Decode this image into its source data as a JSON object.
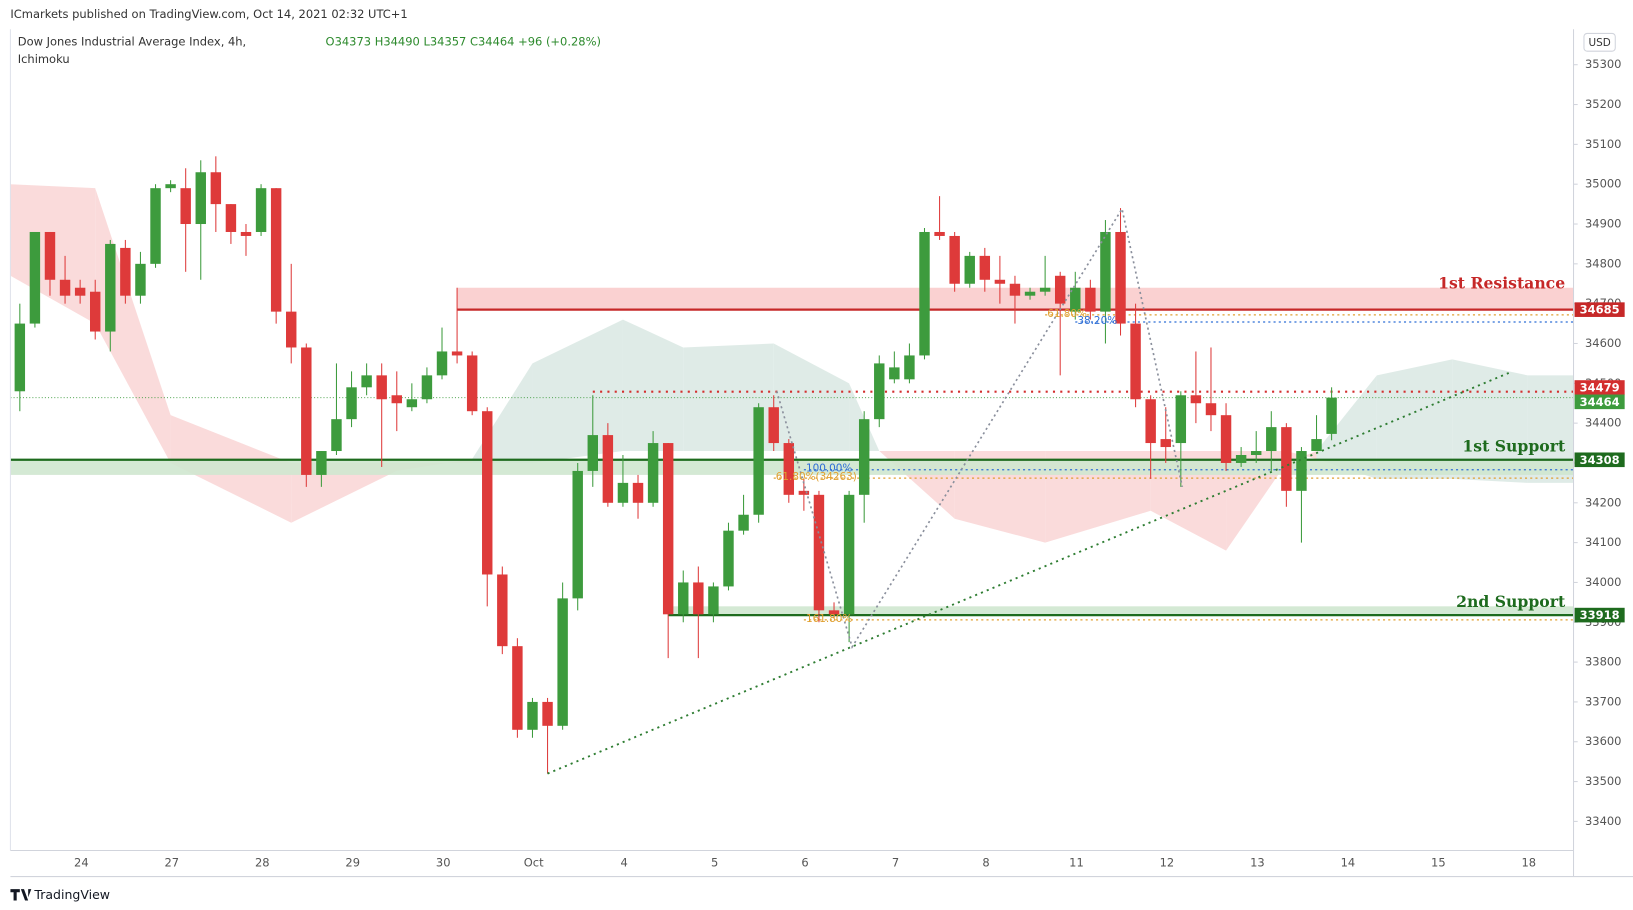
{
  "chart_data": {
    "type": "candlestick",
    "publisher": "ICmarkets published on TradingView.com, Oct 14, 2021 02:32 UTC+1",
    "symbol": "Dow Jones Industrial Average Index, 4h,",
    "indicator": "Ichimoku",
    "ohlc_text": "O34373 H34490 L34357 C34464 +96 (+0.28%)",
    "currency": "USD",
    "brand": "TradingView",
    "day_labels": [
      "24",
      "27",
      "28",
      "29",
      "30",
      "Oct",
      "4",
      "5",
      "6",
      "7",
      "8",
      "11",
      "12",
      "13",
      "14",
      "15",
      "18"
    ],
    "ylim": [
      33327,
      35389
    ],
    "yticks": [
      33400,
      33500,
      33600,
      33700,
      33800,
      33900,
      34000,
      34100,
      34200,
      34300,
      34400,
      34500,
      34600,
      34700,
      34800,
      34900,
      35000,
      35100,
      35200,
      35300
    ],
    "grid": false,
    "up_color": "#3d9b3d",
    "down_color": "#de3a3a",
    "open": [
      34480,
      34650,
      34880,
      34760,
      34740,
      34730,
      34630,
      34840,
      34720,
      34800,
      34990,
      34990,
      34900,
      35030,
      34950,
      34880,
      34880,
      34990,
      34680,
      34590,
      34270,
      34330,
      34410,
      34490,
      34520,
      34470,
      34440,
      34460,
      34520,
      34580,
      34570,
      34430,
      34020,
      33840,
      33630,
      33700,
      33640,
      33960,
      34280,
      34370,
      34200,
      34250,
      34200,
      34350,
      33920,
      34000,
      33920,
      33990,
      34130,
      34170,
      34440,
      34350,
      34230,
      34220,
      33930,
      33920,
      34220,
      34410,
      34510,
      34510,
      34570,
      34880,
      34870,
      34750,
      34820,
      34760,
      34750,
      34720,
      34730,
      34770,
      34680,
      34740,
      34680,
      34880,
      34650,
      34460,
      34360,
      34350,
      34470,
      34450,
      34420,
      34300,
      34320,
      34330,
      34390,
      34230,
      34330,
      34373
    ],
    "high": [
      34700,
      34880,
      34880,
      34820,
      34760,
      34760,
      34860,
      34860,
      34830,
      35000,
      35010,
      35040,
      35060,
      35070,
      34950,
      34900,
      35000,
      34990,
      34800,
      34600,
      34330,
      34550,
      34530,
      34550,
      34550,
      34530,
      34500,
      34540,
      34640,
      34740,
      34580,
      34440,
      34040,
      33860,
      33710,
      33710,
      34000,
      34300,
      34470,
      34400,
      34320,
      34270,
      34380,
      34350,
      34030,
      34040,
      34000,
      34150,
      34220,
      34450,
      34470,
      34360,
      34260,
      34230,
      33950,
      34230,
      34430,
      34570,
      34580,
      34600,
      34890,
      34970,
      34880,
      34830,
      34840,
      34820,
      34770,
      34740,
      34820,
      34780,
      34780,
      34760,
      34910,
      34940,
      34700,
      34470,
      34440,
      34480,
      34580,
      34590,
      34450,
      34340,
      34380,
      34430,
      34400,
      34340,
      34420,
      34490
    ],
    "low": [
      34430,
      34640,
      34720,
      34700,
      34700,
      34610,
      34580,
      34700,
      34700,
      34790,
      34980,
      34780,
      34760,
      34880,
      34850,
      34820,
      34870,
      34650,
      34550,
      34240,
      34240,
      34320,
      34390,
      34470,
      34290,
      34380,
      34430,
      34450,
      34510,
      34550,
      34420,
      33940,
      33820,
      33610,
      33610,
      33520,
      33630,
      33930,
      34240,
      34190,
      34190,
      34160,
      34190,
      33810,
      33900,
      33810,
      33900,
      33980,
      34120,
      34150,
      34330,
      34200,
      34180,
      33900,
      33910,
      33850,
      34150,
      34390,
      34500,
      34500,
      34560,
      34860,
      34730,
      34740,
      34730,
      34700,
      34650,
      34710,
      34720,
      34520,
      34660,
      34660,
      34600,
      34620,
      34440,
      34260,
      34300,
      34240,
      34400,
      34380,
      34280,
      34290,
      34300,
      34280,
      34190,
      34100,
      34330,
      34357
    ],
    "close": [
      34650,
      34880,
      34760,
      34720,
      34720,
      34630,
      34850,
      34720,
      34800,
      34990,
      35000,
      34900,
      35030,
      34950,
      34880,
      34870,
      34990,
      34680,
      34590,
      34270,
      34330,
      34410,
      34490,
      34520,
      34460,
      34450,
      34460,
      34520,
      34580,
      34570,
      34430,
      34020,
      33840,
      33630,
      33700,
      33640,
      33960,
      34280,
      34370,
      34200,
      34250,
      34200,
      34350,
      33920,
      34000,
      33920,
      33990,
      34130,
      34170,
      34440,
      34350,
      34220,
      34220,
      33930,
      33920,
      34220,
      34410,
      34550,
      34540,
      34570,
      34880,
      34870,
      34750,
      34820,
      34760,
      34750,
      34720,
      34730,
      34740,
      34700,
      34740,
      34680,
      34880,
      34650,
      34460,
      34350,
      34340,
      34470,
      34450,
      34420,
      34300,
      34320,
      34330,
      34390,
      34230,
      34330,
      34360,
      34464
    ],
    "cloud": {
      "up_color": "#d9e8e3",
      "down_color": "#f9d5d5",
      "x": [
        -1,
        5,
        10,
        18,
        25,
        30,
        34,
        40,
        44,
        50,
        55,
        57,
        62,
        68,
        75,
        80,
        84,
        86,
        90,
        95,
        100,
        103.3
      ],
      "span_a": [
        34770,
        34650,
        34300,
        34150,
        34280,
        34310,
        34550,
        34660,
        34590,
        34600,
        34500,
        34330,
        34160,
        34100,
        34180,
        34080,
        34300,
        34330,
        34520,
        34560,
        34520,
        34520
      ],
      "span_b": [
        35000,
        34990,
        34420,
        34300,
        34300,
        34300,
        34300,
        34330,
        34330,
        34330,
        34330,
        34330,
        34330,
        34330,
        34330,
        34330,
        34330,
        34310,
        34260,
        34260,
        34250,
        34250
      ]
    },
    "levels": [
      {
        "name": "1st Resistance",
        "value": 34685,
        "zone": [
          34685,
          34740
        ],
        "color": "#c62828",
        "zone_color": "#f9cccc",
        "from": 29
      },
      {
        "name": "1st Support",
        "value": 34308,
        "zone": [
          34270,
          34308
        ],
        "color": "#1e6b1e",
        "zone_color": "#cfe7cf",
        "from": -1
      },
      {
        "name": "2nd Support",
        "value": 33918,
        "zone": [
          33918,
          33940
        ],
        "color": "#1e6b1e",
        "zone_color": "#cfe7cf",
        "from": 43
      }
    ],
    "price_lines": [
      {
        "value": 34479,
        "color": "#d32f2f",
        "from": 38
      },
      {
        "value": 34464,
        "color": "#3d9b3d",
        "from": -1
      }
    ],
    "fib_lines": [
      {
        "label": "61.80%",
        "value": 34672,
        "color": "#e0a030",
        "from": 68
      },
      {
        "label": "38.20%",
        "value": 34654,
        "color": "#2f6fd6",
        "from": 70
      },
      {
        "label": "100.00%",
        "value": 34283,
        "color": "#2f6fd6",
        "from": 52
      },
      {
        "label": "61.80%(34263)",
        "value": 34262,
        "color": "#e0a030",
        "from": 50
      },
      {
        "label": "161.80%",
        "value": 33906,
        "color": "#e0a030",
        "from": 52
      }
    ],
    "trendline": {
      "x": [
        35,
        99
      ],
      "y": [
        33520,
        34530
      ],
      "color": "#2e7d32"
    },
    "zigzag": {
      "x": [
        50.2,
        55.2,
        73.1,
        77.1
      ],
      "y": [
        34480,
        33838,
        34938,
        34240
      ],
      "color": "#8a8f9c"
    }
  }
}
